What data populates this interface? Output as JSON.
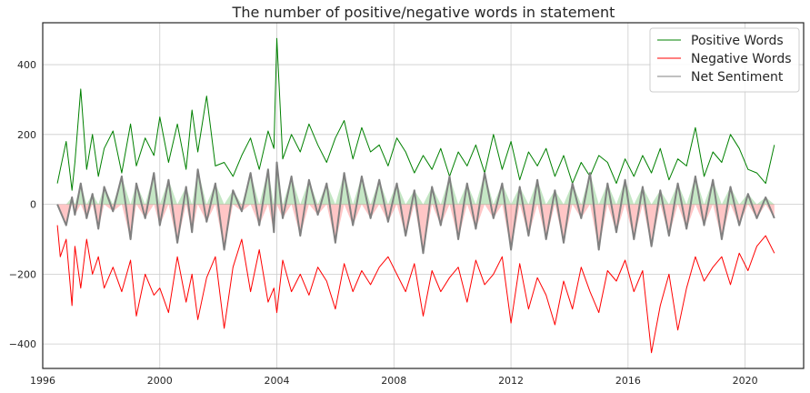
{
  "chart_data": {
    "type": "line",
    "title": "The number of positive/negative words in statement",
    "xlabel": "",
    "ylabel": "",
    "xlim": [
      1996.0,
      2022.0
    ],
    "ylim": [
      -470,
      520
    ],
    "x_ticks": [
      1996,
      2000,
      2004,
      2008,
      2012,
      2016,
      2020
    ],
    "x_tick_labels": [
      "1996",
      "2000",
      "2004",
      "2008",
      "2012",
      "2016",
      "2020"
    ],
    "y_ticks": [
      -400,
      -200,
      0,
      200,
      400
    ],
    "y_tick_labels": [
      "−400",
      "−200",
      "0",
      "200",
      "400"
    ],
    "grid": true,
    "legend": {
      "position": "top-right"
    },
    "series": [
      {
        "name": "Positive Words",
        "color": "#008000",
        "x": [
          1996.5,
          1996.6,
          1996.8,
          1997.0,
          1997.1,
          1997.3,
          1997.5,
          1997.7,
          1997.9,
          1998.1,
          1998.4,
          1998.7,
          1999.0,
          1999.2,
          1999.5,
          1999.8,
          2000.0,
          2000.3,
          2000.6,
          2000.9,
          2001.1,
          2001.3,
          2001.6,
          2001.9,
          2002.2,
          2002.5,
          2002.8,
          2003.1,
          2003.4,
          2003.7,
          2003.9,
          2004.0,
          2004.2,
          2004.5,
          2004.8,
          2005.1,
          2005.4,
          2005.7,
          2006.0,
          2006.3,
          2006.6,
          2006.9,
          2007.2,
          2007.5,
          2007.8,
          2008.1,
          2008.4,
          2008.7,
          2009.0,
          2009.3,
          2009.6,
          2009.9,
          2010.2,
          2010.5,
          2010.8,
          2011.1,
          2011.4,
          2011.7,
          2012.0,
          2012.3,
          2012.6,
          2012.9,
          2013.2,
          2013.5,
          2013.8,
          2014.1,
          2014.4,
          2014.7,
          2015.0,
          2015.3,
          2015.6,
          2015.9,
          2016.2,
          2016.5,
          2016.8,
          2017.1,
          2017.4,
          2017.7,
          2018.0,
          2018.3,
          2018.6,
          2018.9,
          2019.2,
          2019.5,
          2019.8,
          2020.1,
          2020.4,
          2020.7,
          2021.0
        ],
        "y": [
          60,
          100,
          180,
          40,
          120,
          330,
          100,
          200,
          80,
          160,
          210,
          90,
          230,
          110,
          190,
          140,
          250,
          120,
          230,
          100,
          270,
          150,
          310,
          110,
          120,
          80,
          140,
          190,
          100,
          210,
          160,
          475,
          130,
          200,
          150,
          230,
          170,
          120,
          190,
          240,
          130,
          220,
          150,
          170,
          110,
          190,
          150,
          90,
          140,
          100,
          160,
          80,
          150,
          110,
          170,
          90,
          200,
          100,
          180,
          70,
          150,
          110,
          160,
          80,
          140,
          60,
          120,
          80,
          140,
          120,
          60,
          130,
          80,
          140,
          90,
          160,
          70,
          130,
          110,
          220,
          80,
          150,
          120,
          200,
          160,
          100,
          90,
          60,
          170
        ]
      },
      {
        "name": "Negative Words",
        "color": "#ff0000",
        "x": [
          1996.5,
          1996.6,
          1996.8,
          1997.0,
          1997.1,
          1997.3,
          1997.5,
          1997.7,
          1997.9,
          1998.1,
          1998.4,
          1998.7,
          1999.0,
          1999.2,
          1999.5,
          1999.8,
          2000.0,
          2000.3,
          2000.6,
          2000.9,
          2001.1,
          2001.3,
          2001.6,
          2001.9,
          2002.2,
          2002.5,
          2002.8,
          2003.1,
          2003.4,
          2003.7,
          2003.9,
          2004.0,
          2004.2,
          2004.5,
          2004.8,
          2005.1,
          2005.4,
          2005.7,
          2006.0,
          2006.3,
          2006.6,
          2006.9,
          2007.2,
          2007.5,
          2007.8,
          2008.1,
          2008.4,
          2008.7,
          2009.0,
          2009.3,
          2009.6,
          2009.9,
          2010.2,
          2010.5,
          2010.8,
          2011.1,
          2011.4,
          2011.7,
          2012.0,
          2012.3,
          2012.6,
          2012.9,
          2013.2,
          2013.5,
          2013.8,
          2014.1,
          2014.4,
          2014.7,
          2015.0,
          2015.3,
          2015.6,
          2015.9,
          2016.2,
          2016.5,
          2016.8,
          2017.1,
          2017.4,
          2017.7,
          2018.0,
          2018.3,
          2018.6,
          2018.9,
          2019.2,
          2019.5,
          2019.8,
          2020.1,
          2020.4,
          2020.7,
          2021.0
        ],
        "y": [
          -60,
          -150,
          -100,
          -290,
          -120,
          -240,
          -100,
          -200,
          -150,
          -240,
          -180,
          -250,
          -160,
          -320,
          -200,
          -260,
          -240,
          -310,
          -150,
          -280,
          -200,
          -330,
          -210,
          -150,
          -355,
          -180,
          -100,
          -250,
          -130,
          -280,
          -240,
          -310,
          -160,
          -250,
          -200,
          -260,
          -180,
          -220,
          -300,
          -170,
          -250,
          -190,
          -230,
          -180,
          -150,
          -200,
          -250,
          -170,
          -320,
          -190,
          -250,
          -210,
          -180,
          -280,
          -160,
          -230,
          -200,
          -150,
          -340,
          -170,
          -300,
          -210,
          -260,
          -345,
          -220,
          -300,
          -180,
          -250,
          -310,
          -190,
          -220,
          -160,
          -250,
          -190,
          -425,
          -290,
          -200,
          -360,
          -240,
          -150,
          -220,
          -180,
          -150,
          -230,
          -140,
          -190,
          -120,
          -90,
          -140
        ]
      },
      {
        "name": "Net Sentiment",
        "color": "#808080",
        "x": [
          1996.5,
          1996.6,
          1996.8,
          1997.0,
          1997.1,
          1997.3,
          1997.5,
          1997.7,
          1997.9,
          1998.1,
          1998.4,
          1998.7,
          1999.0,
          1999.2,
          1999.5,
          1999.8,
          2000.0,
          2000.3,
          2000.6,
          2000.9,
          2001.1,
          2001.3,
          2001.6,
          2001.9,
          2002.2,
          2002.5,
          2002.8,
          2003.1,
          2003.4,
          2003.7,
          2003.9,
          2004.0,
          2004.2,
          2004.5,
          2004.8,
          2005.1,
          2005.4,
          2005.7,
          2006.0,
          2006.3,
          2006.6,
          2006.9,
          2007.2,
          2007.5,
          2007.8,
          2008.1,
          2008.4,
          2008.7,
          2009.0,
          2009.3,
          2009.6,
          2009.9,
          2010.2,
          2010.5,
          2010.8,
          2011.1,
          2011.4,
          2011.7,
          2012.0,
          2012.3,
          2012.6,
          2012.9,
          2013.2,
          2013.5,
          2013.8,
          2014.1,
          2014.4,
          2014.7,
          2015.0,
          2015.3,
          2015.6,
          2015.9,
          2016.2,
          2016.5,
          2016.8,
          2017.1,
          2017.4,
          2017.7,
          2018.0,
          2018.3,
          2018.6,
          2018.9,
          2019.2,
          2019.5,
          2019.8,
          2020.1,
          2020.4,
          2020.7,
          2021.0
        ],
        "y": [
          0,
          -20,
          -60,
          20,
          -30,
          60,
          -40,
          30,
          -70,
          50,
          -20,
          80,
          -100,
          60,
          -40,
          90,
          -60,
          70,
          -110,
          50,
          -80,
          100,
          -50,
          60,
          -130,
          40,
          -20,
          90,
          -60,
          100,
          -80,
          120,
          -40,
          80,
          -90,
          70,
          -30,
          60,
          -110,
          90,
          -60,
          80,
          -40,
          70,
          -50,
          60,
          -90,
          40,
          -140,
          50,
          -60,
          80,
          -100,
          60,
          -70,
          90,
          -40,
          60,
          -130,
          50,
          -90,
          70,
          -100,
          40,
          -110,
          60,
          -40,
          90,
          -130,
          60,
          -80,
          70,
          -100,
          50,
          -120,
          40,
          -90,
          60,
          -70,
          80,
          -60,
          70,
          -100,
          50,
          -60,
          30,
          -40,
          20,
          -40
        ]
      }
    ]
  }
}
